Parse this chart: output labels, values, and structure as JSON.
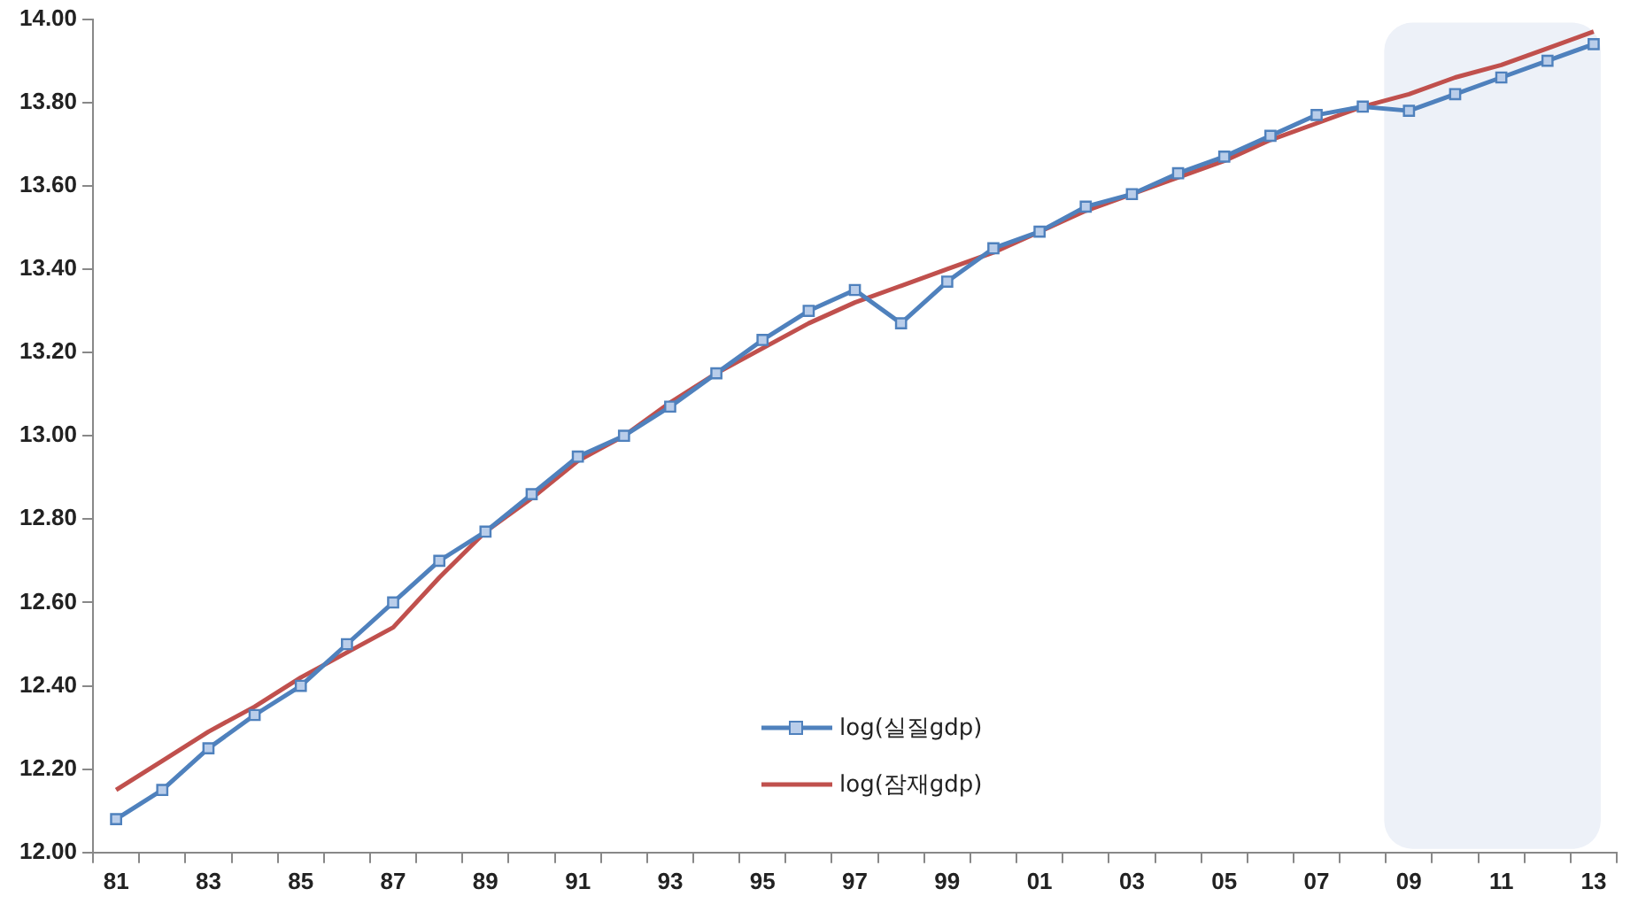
{
  "chart_data": {
    "type": "line",
    "categories": [
      "81",
      null,
      "83",
      null,
      "85",
      null,
      "87",
      null,
      "89",
      null,
      "91",
      null,
      "93",
      null,
      "95",
      null,
      "97",
      null,
      "99",
      null,
      "01",
      null,
      "03",
      null,
      "05",
      null,
      "07",
      null,
      "09",
      null,
      "11",
      null,
      "13"
    ],
    "series": [
      {
        "name": "log(실질gdp)",
        "color": "#4f81bd",
        "marker": "square",
        "values": [
          12.08,
          12.15,
          12.25,
          12.33,
          12.4,
          12.5,
          12.6,
          12.7,
          12.77,
          12.86,
          12.95,
          13.0,
          13.07,
          13.15,
          13.23,
          13.3,
          13.35,
          13.27,
          13.37,
          13.45,
          13.49,
          13.55,
          13.58,
          13.63,
          13.67,
          13.72,
          13.77,
          13.79,
          13.78,
          13.82,
          13.86,
          13.9,
          13.94
        ]
      },
      {
        "name": "log(잠재gdp)",
        "color": "#c0504d",
        "marker": "none",
        "values": [
          12.15,
          12.22,
          12.29,
          12.35,
          12.42,
          12.48,
          12.54,
          12.66,
          12.77,
          12.85,
          12.94,
          13.0,
          13.08,
          13.15,
          13.21,
          13.27,
          13.32,
          13.36,
          13.4,
          13.44,
          13.49,
          13.54,
          13.58,
          13.62,
          13.66,
          13.71,
          13.75,
          13.79,
          13.82,
          13.86,
          13.89,
          13.93,
          13.97
        ]
      }
    ],
    "ylim": [
      12,
      14
    ],
    "yticks": [
      {
        "value": 12,
        "label": "12.00"
      },
      {
        "value": 12.2,
        "label": "12.20"
      },
      {
        "value": 12.4,
        "label": "12.40"
      },
      {
        "value": 12.6,
        "label": "12.60"
      },
      {
        "value": 12.8,
        "label": "12.80"
      },
      {
        "value": 13,
        "label": "13.00"
      },
      {
        "value": 13.2,
        "label": "13.20"
      },
      {
        "value": 13.4,
        "label": "13.40"
      },
      {
        "value": 13.6,
        "label": "13.60"
      },
      {
        "value": 13.8,
        "label": "13.80"
      },
      {
        "value": 14,
        "label": "14.00"
      }
    ],
    "bands": [
      {
        "axis": "x",
        "from": "09",
        "to": "13",
        "color": "#edf1f8"
      }
    ],
    "grid": false,
    "legend": "bottom",
    "line_style": "solid"
  }
}
